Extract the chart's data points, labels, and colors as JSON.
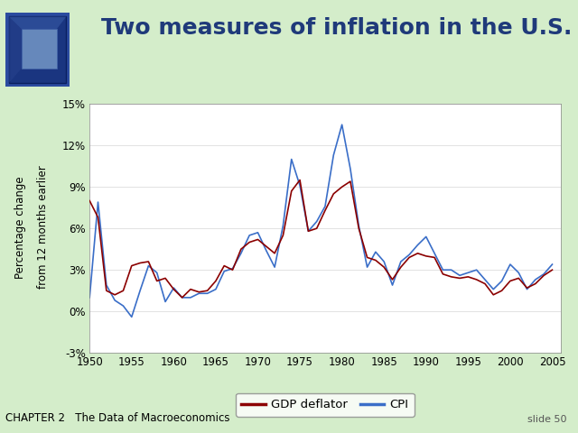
{
  "title": "Two measures of inflation in the U.S.",
  "ylabel_line1": "Percentage change",
  "ylabel_line2": "from 12 months earlier",
  "chapter_label": "CHAPTER 2   The Data of Macroeconomics",
  "slide_label": "slide 50",
  "title_color": "#1F3A7A",
  "title_fontsize": 18,
  "slide_bg_color": "#D4EDCA",
  "plot_bg_color": "#FFFFFF",
  "gdp_color": "#8B0000",
  "cpi_color": "#3A6EC8",
  "ylim": [
    -3,
    15
  ],
  "yticks": [
    -3,
    0,
    3,
    6,
    9,
    12,
    15
  ],
  "ytick_labels": [
    "-3%",
    "0%",
    "3%",
    "6%",
    "9%",
    "12%",
    "15%"
  ],
  "xlim": [
    1950,
    2006
  ],
  "xticks": [
    1950,
    1955,
    1960,
    1965,
    1970,
    1975,
    1980,
    1985,
    1990,
    1995,
    2000,
    2005
  ],
  "gdp_deflator_years": [
    1950,
    1951,
    1952,
    1953,
    1954,
    1955,
    1956,
    1957,
    1958,
    1959,
    1960,
    1961,
    1962,
    1963,
    1964,
    1965,
    1966,
    1967,
    1968,
    1969,
    1970,
    1971,
    1972,
    1973,
    1974,
    1975,
    1976,
    1977,
    1978,
    1979,
    1980,
    1981,
    1982,
    1983,
    1984,
    1985,
    1986,
    1987,
    1988,
    1989,
    1990,
    1991,
    1992,
    1993,
    1994,
    1995,
    1996,
    1997,
    1998,
    1999,
    2000,
    2001,
    2002,
    2003,
    2004,
    2005
  ],
  "gdp_deflator_values": [
    8.0,
    6.8,
    1.5,
    1.2,
    1.5,
    3.3,
    3.5,
    3.6,
    2.2,
    2.4,
    1.6,
    1.0,
    1.6,
    1.4,
    1.5,
    2.2,
    3.3,
    3.0,
    4.5,
    5.0,
    5.2,
    4.7,
    4.2,
    5.5,
    8.7,
    9.5,
    5.8,
    6.0,
    7.3,
    8.5,
    9.0,
    9.4,
    6.0,
    3.9,
    3.7,
    3.2,
    2.3,
    3.2,
    3.9,
    4.2,
    4.0,
    3.9,
    2.7,
    2.5,
    2.4,
    2.5,
    2.3,
    2.0,
    1.2,
    1.5,
    2.2,
    2.4,
    1.7,
    2.0,
    2.6,
    3.0
  ],
  "cpi_years": [
    1950,
    1951,
    1952,
    1953,
    1954,
    1955,
    1956,
    1957,
    1958,
    1959,
    1960,
    1961,
    1962,
    1963,
    1964,
    1965,
    1966,
    1967,
    1968,
    1969,
    1970,
    1971,
    1972,
    1973,
    1974,
    1975,
    1976,
    1977,
    1978,
    1979,
    1980,
    1981,
    1982,
    1983,
    1984,
    1985,
    1986,
    1987,
    1988,
    1989,
    1990,
    1991,
    1992,
    1993,
    1994,
    1995,
    1996,
    1997,
    1998,
    1999,
    2000,
    2001,
    2002,
    2003,
    2004,
    2005
  ],
  "cpi_values": [
    1.0,
    7.9,
    1.9,
    0.8,
    0.4,
    -0.4,
    1.5,
    3.3,
    2.8,
    0.7,
    1.7,
    1.0,
    1.0,
    1.3,
    1.3,
    1.6,
    2.9,
    3.1,
    4.2,
    5.5,
    5.7,
    4.4,
    3.2,
    6.2,
    11.0,
    9.1,
    5.8,
    6.5,
    7.6,
    11.3,
    13.5,
    10.3,
    6.2,
    3.2,
    4.3,
    3.6,
    1.9,
    3.6,
    4.1,
    4.8,
    5.4,
    4.2,
    3.0,
    3.0,
    2.6,
    2.8,
    3.0,
    2.3,
    1.6,
    2.2,
    3.4,
    2.8,
    1.6,
    2.3,
    2.7,
    3.4
  ],
  "legend_entries": [
    "GDP deflator",
    "CPI"
  ],
  "legend_colors": [
    "#8B0000",
    "#3A6EC8"
  ]
}
